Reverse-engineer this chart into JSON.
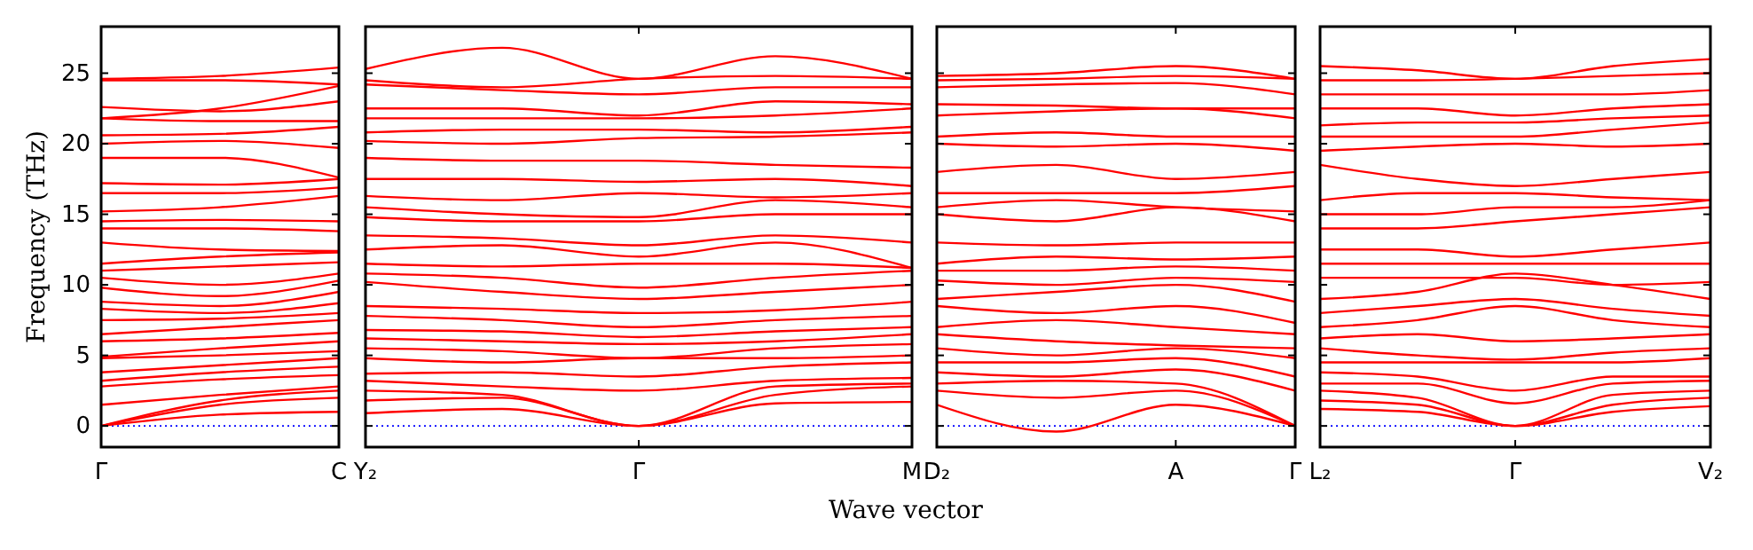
{
  "chart_data": [
    {
      "type": "line",
      "ylabel": "Frequency (THz)",
      "ylim": [
        -1.5,
        28.3
      ],
      "yticks": [
        0,
        5,
        10,
        15,
        20,
        25
      ],
      "categories": [
        "Γ",
        null,
        "C"
      ],
      "line_style": "solid",
      "marker": "none",
      "grid": false,
      "ref_lines": [
        {
          "axis": "y",
          "value": 0,
          "color": "#0000ff",
          "line_style": "dotted"
        }
      ],
      "series": [
        {
          "color": "#ff0000",
          "values": [
            0,
            0.8,
            1.0
          ]
        },
        {
          "color": "#ff0000",
          "values": [
            0,
            1.5,
            2.0
          ]
        },
        {
          "color": "#ff0000",
          "values": [
            0,
            1.8,
            2.5
          ]
        },
        {
          "color": "#ff0000",
          "values": [
            1.5,
            2.2,
            2.8
          ]
        },
        {
          "color": "#ff0000",
          "values": [
            2.8,
            3.3,
            3.6
          ]
        },
        {
          "color": "#ff0000",
          "values": [
            3.2,
            3.8,
            4.2
          ]
        },
        {
          "color": "#ff0000",
          "values": [
            3.8,
            4.3,
            4.8
          ]
        },
        {
          "color": "#ff0000",
          "values": [
            4.8,
            5.0,
            5.3
          ]
        },
        {
          "color": "#ff0000",
          "values": [
            4.9,
            5.5,
            6.0
          ]
        },
        {
          "color": "#ff0000",
          "values": [
            6.0,
            6.2,
            6.6
          ]
        },
        {
          "color": "#ff0000",
          "values": [
            6.5,
            7.0,
            7.5
          ]
        },
        {
          "color": "#ff0000",
          "values": [
            7.5,
            7.6,
            8.0
          ]
        },
        {
          "color": "#ff0000",
          "values": [
            8.3,
            8.0,
            8.7
          ]
        },
        {
          "color": "#ff0000",
          "values": [
            8.8,
            8.5,
            9.5
          ]
        },
        {
          "color": "#ff0000",
          "values": [
            9.8,
            9.2,
            10.3
          ]
        },
        {
          "color": "#ff0000",
          "values": [
            10.5,
            10.0,
            10.8
          ]
        },
        {
          "color": "#ff0000",
          "values": [
            11.0,
            11.3,
            11.6
          ]
        },
        {
          "color": "#ff0000",
          "values": [
            11.5,
            12.0,
            12.3
          ]
        },
        {
          "color": "#ff0000",
          "values": [
            13.0,
            12.5,
            12.4
          ]
        },
        {
          "color": "#ff0000",
          "values": [
            14.0,
            14.0,
            13.8
          ]
        },
        {
          "color": "#ff0000",
          "values": [
            14.5,
            14.6,
            14.5
          ]
        },
        {
          "color": "#ff0000",
          "values": [
            15.2,
            15.5,
            16.3
          ]
        },
        {
          "color": "#ff0000",
          "values": [
            16.5,
            16.5,
            16.9
          ]
        },
        {
          "color": "#ff0000",
          "values": [
            17.2,
            17.1,
            17.5
          ]
        },
        {
          "color": "#ff0000",
          "values": [
            19.0,
            19.0,
            17.6
          ]
        },
        {
          "color": "#ff0000",
          "values": [
            20.0,
            20.2,
            19.7
          ]
        },
        {
          "color": "#ff0000",
          "values": [
            20.6,
            20.7,
            21.2
          ]
        },
        {
          "color": "#ff0000",
          "values": [
            21.8,
            21.6,
            21.6
          ]
        },
        {
          "color": "#ff0000",
          "values": [
            22.6,
            22.3,
            23.0
          ]
        },
        {
          "color": "#ff0000",
          "values": [
            24.5,
            24.5,
            24.2
          ]
        },
        {
          "color": "#ff0000",
          "values": [
            24.6,
            24.8,
            25.4
          ]
        },
        {
          "color": "#ff0000",
          "values": [
            21.8,
            22.5,
            24.1
          ]
        }
      ]
    },
    {
      "type": "line",
      "xlabel": "Wave vector",
      "ylim": [
        -1.5,
        28.3
      ],
      "yticks": [
        0,
        5,
        10,
        15,
        20,
        25
      ],
      "tick_labels": "x",
      "categories": [
        "Y₂",
        null,
        "Γ",
        null,
        "M"
      ],
      "line_style": "solid",
      "marker": "none",
      "grid": false,
      "ref_lines": [
        {
          "axis": "y",
          "value": 0,
          "color": "#0000ff",
          "line_style": "dotted"
        }
      ],
      "series": [
        {
          "color": "#ff0000",
          "values": [
            0.9,
            1.2,
            0,
            1.6,
            1.7
          ]
        },
        {
          "color": "#ff0000",
          "values": [
            1.8,
            2.0,
            0,
            2.2,
            2.8
          ]
        },
        {
          "color": "#ff0000",
          "values": [
            2.5,
            2.2,
            0,
            2.8,
            3.0
          ]
        },
        {
          "color": "#ff0000",
          "values": [
            3.2,
            2.8,
            2.5,
            3.2,
            3.4
          ]
        },
        {
          "color": "#ff0000",
          "values": [
            3.7,
            3.8,
            3.5,
            4.2,
            4.5
          ]
        },
        {
          "color": "#ff0000",
          "values": [
            4.8,
            4.5,
            4.8,
            4.8,
            5.0
          ]
        },
        {
          "color": "#ff0000",
          "values": [
            5.5,
            5.3,
            4.8,
            5.5,
            5.8
          ]
        },
        {
          "color": "#ff0000",
          "values": [
            6.2,
            6.0,
            5.8,
            6.0,
            6.5
          ]
        },
        {
          "color": "#ff0000",
          "values": [
            6.8,
            6.7,
            6.3,
            6.7,
            7.0
          ]
        },
        {
          "color": "#ff0000",
          "values": [
            7.8,
            7.5,
            7.0,
            7.5,
            7.8
          ]
        },
        {
          "color": "#ff0000",
          "values": [
            8.5,
            8.3,
            8.0,
            8.2,
            8.8
          ]
        },
        {
          "color": "#ff0000",
          "values": [
            10.2,
            9.5,
            9.0,
            9.5,
            10.0
          ]
        },
        {
          "color": "#ff0000",
          "values": [
            10.8,
            10.5,
            9.8,
            10.5,
            11.0
          ]
        },
        {
          "color": "#ff0000",
          "values": [
            11.5,
            11.3,
            11.5,
            11.5,
            11.2
          ]
        },
        {
          "color": "#ff0000",
          "values": [
            12.5,
            12.8,
            12.0,
            13.0,
            11.2
          ]
        },
        {
          "color": "#ff0000",
          "values": [
            13.5,
            13.3,
            12.8,
            13.5,
            13.0
          ]
        },
        {
          "color": "#ff0000",
          "values": [
            14.8,
            14.5,
            14.5,
            15.0,
            15.0
          ]
        },
        {
          "color": "#ff0000",
          "values": [
            15.5,
            15.0,
            14.8,
            16.0,
            15.5
          ]
        },
        {
          "color": "#ff0000",
          "values": [
            16.3,
            16.0,
            16.5,
            16.2,
            16.5
          ]
        },
        {
          "color": "#ff0000",
          "values": [
            17.5,
            17.5,
            17.3,
            17.5,
            17.0
          ]
        },
        {
          "color": "#ff0000",
          "values": [
            19.0,
            18.8,
            18.8,
            18.5,
            18.3
          ]
        },
        {
          "color": "#ff0000",
          "values": [
            20.2,
            20.0,
            20.4,
            20.5,
            20.8
          ]
        },
        {
          "color": "#ff0000",
          "values": [
            20.8,
            21.0,
            21.0,
            20.8,
            21.2
          ]
        },
        {
          "color": "#ff0000",
          "values": [
            21.8,
            21.8,
            21.8,
            22.0,
            22.5
          ]
        },
        {
          "color": "#ff0000",
          "values": [
            22.5,
            22.5,
            22.0,
            23.0,
            22.8
          ]
        },
        {
          "color": "#ff0000",
          "values": [
            24.2,
            23.8,
            23.5,
            24.0,
            24.0
          ]
        },
        {
          "color": "#ff0000",
          "values": [
            24.5,
            24.0,
            24.6,
            24.8,
            24.6
          ]
        },
        {
          "color": "#ff0000",
          "values": [
            25.3,
            26.8,
            24.6,
            26.2,
            24.6
          ]
        }
      ]
    },
    {
      "type": "line",
      "ylim": [
        -1.5,
        28.3
      ],
      "yticks": [
        0,
        5,
        10,
        15,
        20,
        25
      ],
      "tick_labels": "x",
      "categories": [
        "D₂",
        null,
        "A",
        "Γ"
      ],
      "line_style": "solid",
      "marker": "none",
      "grid": false,
      "ref_lines": [
        {
          "axis": "y",
          "value": 0,
          "color": "#0000ff",
          "line_style": "dotted"
        }
      ],
      "series": [
        {
          "color": "#ff0000",
          "values": [
            1.5,
            -0.4,
            1.5,
            0
          ]
        },
        {
          "color": "#ff0000",
          "values": [
            2.5,
            2.0,
            2.5,
            0
          ]
        },
        {
          "color": "#ff0000",
          "values": [
            3.0,
            3.2,
            3.0,
            0
          ]
        },
        {
          "color": "#ff0000",
          "values": [
            3.8,
            3.5,
            4.0,
            2.5
          ]
        },
        {
          "color": "#ff0000",
          "values": [
            4.5,
            4.5,
            4.8,
            3.5
          ]
        },
        {
          "color": "#ff0000",
          "values": [
            5.5,
            5.0,
            5.5,
            4.8
          ]
        },
        {
          "color": "#ff0000",
          "values": [
            6.5,
            6.0,
            5.7,
            5.5
          ]
        },
        {
          "color": "#ff0000",
          "values": [
            7.0,
            7.5,
            7.0,
            6.5
          ]
        },
        {
          "color": "#ff0000",
          "values": [
            8.5,
            8.0,
            8.5,
            7.3
          ]
        },
        {
          "color": "#ff0000",
          "values": [
            9.0,
            9.5,
            10.0,
            8.8
          ]
        },
        {
          "color": "#ff0000",
          "values": [
            10.3,
            10.0,
            10.5,
            10.2
          ]
        },
        {
          "color": "#ff0000",
          "values": [
            11.0,
            11.0,
            11.3,
            11.0
          ]
        },
        {
          "color": "#ff0000",
          "values": [
            11.5,
            12.0,
            11.8,
            12.0
          ]
        },
        {
          "color": "#ff0000",
          "values": [
            13.0,
            12.8,
            13.0,
            13.0
          ]
        },
        {
          "color": "#ff0000",
          "values": [
            15.0,
            14.5,
            15.5,
            14.5
          ]
        },
        {
          "color": "#ff0000",
          "values": [
            15.5,
            16.0,
            15.5,
            15.2
          ]
        },
        {
          "color": "#ff0000",
          "values": [
            16.5,
            16.5,
            16.5,
            17.0
          ]
        },
        {
          "color": "#ff0000",
          "values": [
            18.0,
            18.5,
            17.5,
            18.0
          ]
        },
        {
          "color": "#ff0000",
          "values": [
            20.0,
            19.8,
            20.0,
            19.5
          ]
        },
        {
          "color": "#ff0000",
          "values": [
            20.5,
            20.8,
            20.5,
            20.5
          ]
        },
        {
          "color": "#ff0000",
          "values": [
            22.0,
            22.3,
            22.5,
            21.8
          ]
        },
        {
          "color": "#ff0000",
          "values": [
            22.8,
            22.7,
            22.5,
            22.5
          ]
        },
        {
          "color": "#ff0000",
          "values": [
            24.0,
            24.2,
            24.3,
            23.5
          ]
        },
        {
          "color": "#ff0000",
          "values": [
            24.5,
            24.6,
            24.8,
            24.6
          ]
        },
        {
          "color": "#ff0000",
          "values": [
            24.8,
            25.0,
            25.5,
            24.6
          ]
        }
      ]
    },
    {
      "type": "line",
      "ylim": [
        -1.5,
        28.3
      ],
      "yticks": [
        0,
        5,
        10,
        15,
        20,
        25
      ],
      "tick_labels": "x",
      "categories": [
        "L₂",
        null,
        "Γ",
        null,
        "V₂"
      ],
      "line_style": "solid",
      "marker": "none",
      "grid": false,
      "ref_lines": [
        {
          "axis": "y",
          "value": 0,
          "color": "#0000ff",
          "line_style": "dotted"
        }
      ],
      "series": [
        {
          "color": "#ff0000",
          "values": [
            1.2,
            1.0,
            0,
            1.0,
            1.4
          ]
        },
        {
          "color": "#ff0000",
          "values": [
            1.8,
            1.5,
            0,
            1.5,
            2.0
          ]
        },
        {
          "color": "#ff0000",
          "values": [
            2.5,
            2.0,
            0,
            2.2,
            2.5
          ]
        },
        {
          "color": "#ff0000",
          "values": [
            3.0,
            3.0,
            1.6,
            3.0,
            3.2
          ]
        },
        {
          "color": "#ff0000",
          "values": [
            3.8,
            3.5,
            2.5,
            3.5,
            3.5
          ]
        },
        {
          "color": "#ff0000",
          "values": [
            4.5,
            4.5,
            4.5,
            4.5,
            4.8
          ]
        },
        {
          "color": "#ff0000",
          "values": [
            5.5,
            5.0,
            4.7,
            5.2,
            5.5
          ]
        },
        {
          "color": "#ff0000",
          "values": [
            6.2,
            6.5,
            6.0,
            6.2,
            6.5
          ]
        },
        {
          "color": "#ff0000",
          "values": [
            7.0,
            7.5,
            8.5,
            7.5,
            7.0
          ]
        },
        {
          "color": "#ff0000",
          "values": [
            8.0,
            8.5,
            9.0,
            8.3,
            7.8
          ]
        },
        {
          "color": "#ff0000",
          "values": [
            9.0,
            9.5,
            10.8,
            10.0,
            9.0
          ]
        },
        {
          "color": "#ff0000",
          "values": [
            10.5,
            10.5,
            10.5,
            10.0,
            10.2
          ]
        },
        {
          "color": "#ff0000",
          "values": [
            11.5,
            11.5,
            11.5,
            11.5,
            11.5
          ]
        },
        {
          "color": "#ff0000",
          "values": [
            12.5,
            12.5,
            12.0,
            12.5,
            13.0
          ]
        },
        {
          "color": "#ff0000",
          "values": [
            14.0,
            14.0,
            14.5,
            15.0,
            15.5
          ]
        },
        {
          "color": "#ff0000",
          "values": [
            15.0,
            15.0,
            15.5,
            15.5,
            16.0
          ]
        },
        {
          "color": "#ff0000",
          "values": [
            16.0,
            16.5,
            16.5,
            16.2,
            16.0
          ]
        },
        {
          "color": "#ff0000",
          "values": [
            18.5,
            17.5,
            17.0,
            17.5,
            18.0
          ]
        },
        {
          "color": "#ff0000",
          "values": [
            19.5,
            19.8,
            20.0,
            19.8,
            20.0
          ]
        },
        {
          "color": "#ff0000",
          "values": [
            20.5,
            20.5,
            20.5,
            21.0,
            21.5
          ]
        },
        {
          "color": "#ff0000",
          "values": [
            21.3,
            21.5,
            21.5,
            21.8,
            22.0
          ]
        },
        {
          "color": "#ff0000",
          "values": [
            22.5,
            22.5,
            22.0,
            22.5,
            22.8
          ]
        },
        {
          "color": "#ff0000",
          "values": [
            23.5,
            23.5,
            23.5,
            23.5,
            23.8
          ]
        },
        {
          "color": "#ff0000",
          "values": [
            24.5,
            24.5,
            24.6,
            24.8,
            25.0
          ]
        },
        {
          "color": "#ff0000",
          "values": [
            25.5,
            25.2,
            24.6,
            25.5,
            26.0
          ]
        }
      ]
    }
  ]
}
